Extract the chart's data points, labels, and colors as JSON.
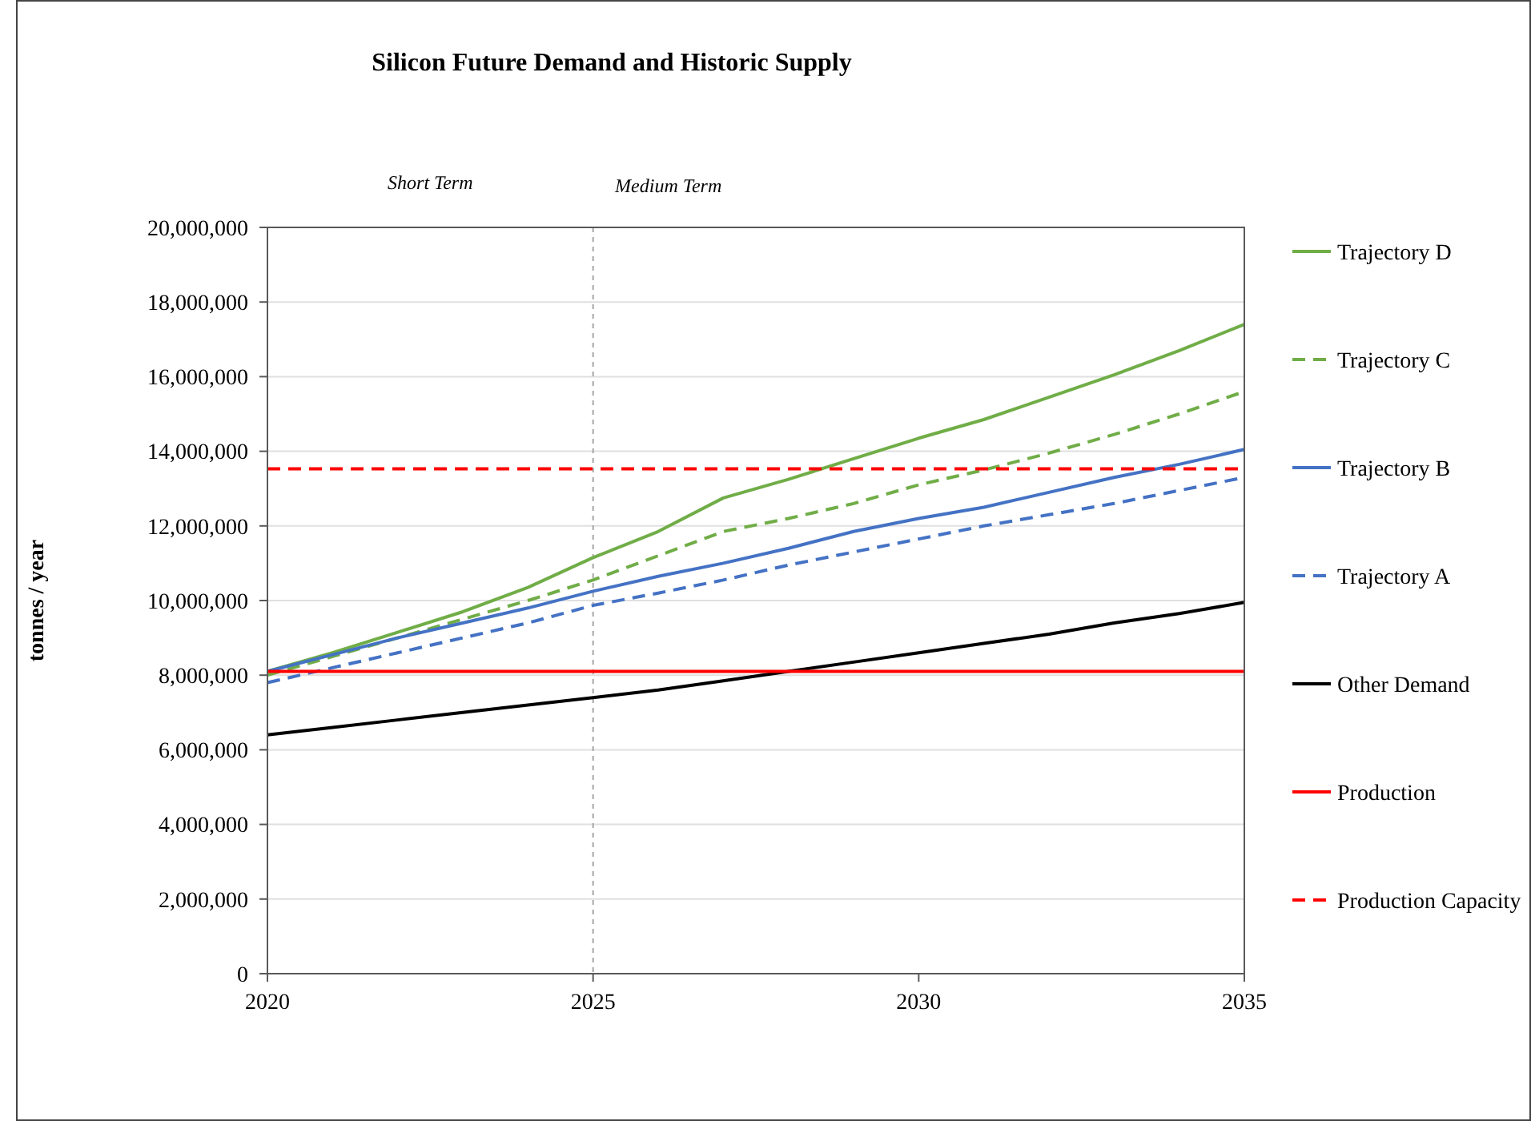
{
  "chart_data": {
    "type": "line",
    "title": "Silicon Future Demand and Historic Supply",
    "ylabel": "tonnes / year",
    "annotations": [
      "Short Term",
      "Medium Term"
    ],
    "x": [
      2020,
      2021,
      2022,
      2023,
      2024,
      2025,
      2026,
      2027,
      2028,
      2029,
      2030,
      2031,
      2032,
      2033,
      2034,
      2035
    ],
    "series": [
      {
        "name": "Trajectory D",
        "color": "#70ad47",
        "line_style": "solid",
        "values": [
          8100000,
          8600000,
          9150000,
          9700000,
          10350000,
          11150000,
          11850000,
          12750000,
          13250000,
          13800000,
          14350000,
          14850000,
          15450000,
          16050000,
          16700000,
          17400000
        ]
      },
      {
        "name": "Trajectory C",
        "color": "#70ad47",
        "line_style": "dashed",
        "values": [
          8000000,
          8500000,
          9000000,
          9500000,
          10000000,
          10550000,
          11200000,
          11850000,
          12200000,
          12600000,
          13100000,
          13500000,
          13950000,
          14450000,
          15000000,
          15600000
        ]
      },
      {
        "name": "Trajectory B",
        "color": "#4472c4",
        "line_style": "solid",
        "values": [
          8100000,
          8550000,
          9000000,
          9400000,
          9800000,
          10250000,
          10650000,
          11000000,
          11400000,
          11850000,
          12200000,
          12500000,
          12900000,
          13300000,
          13650000,
          14050000
        ]
      },
      {
        "name": "Trajectory A",
        "color": "#4472c4",
        "line_style": "dashed",
        "values": [
          7800000,
          8200000,
          8600000,
          9000000,
          9400000,
          9870000,
          10200000,
          10550000,
          10950000,
          11300000,
          11650000,
          12000000,
          12300000,
          12600000,
          12950000,
          13300000
        ]
      },
      {
        "name": "Other Demand",
        "color": "#000000",
        "line_style": "solid",
        "values": [
          6400000,
          6600000,
          6800000,
          7000000,
          7200000,
          7400000,
          7600000,
          7850000,
          8100000,
          8350000,
          8600000,
          8850000,
          9100000,
          9400000,
          9650000,
          9950000
        ]
      },
      {
        "name": "Production",
        "color": "#ff0000",
        "line_style": "solid",
        "values": [
          8100000,
          8100000,
          8100000,
          8100000,
          8100000,
          8100000,
          8100000,
          8100000,
          8100000,
          8100000,
          8100000,
          8100000,
          8100000,
          8100000,
          8100000,
          8100000
        ]
      },
      {
        "name": "Production Capacity",
        "color": "#ff0000",
        "line_style": "dashed",
        "values": [
          13530000,
          13530000,
          13530000,
          13530000,
          13530000,
          13530000,
          13530000,
          13530000,
          13530000,
          13530000,
          13530000,
          13530000,
          13530000,
          13530000,
          13530000,
          13530000
        ]
      }
    ],
    "ref_lines": [
      {
        "axis": "x",
        "value": 2025,
        "color": "#a6a6a6",
        "line_style": "dotted"
      }
    ],
    "xlim": [
      2020,
      2035
    ],
    "xticks": [
      2020,
      2025,
      2030,
      2035
    ],
    "ylim": [
      0,
      20000000
    ],
    "yticks": [
      {
        "value": 0,
        "label": "0"
      },
      {
        "value": 2000000,
        "label": "2,000,000"
      },
      {
        "value": 4000000,
        "label": "4,000,000"
      },
      {
        "value": 6000000,
        "label": "6,000,000"
      },
      {
        "value": 8000000,
        "label": "8,000,000"
      },
      {
        "value": 10000000,
        "label": "10,000,000"
      },
      {
        "value": 12000000,
        "label": "12,000,000"
      },
      {
        "value": 14000000,
        "label": "14,000,000"
      },
      {
        "value": 16000000,
        "label": "16,000,000"
      },
      {
        "value": 18000000,
        "label": "18,000,000"
      },
      {
        "value": 20000000,
        "label": "20,000,000"
      }
    ],
    "grid": "y",
    "legend": "right",
    "marker": "none"
  }
}
